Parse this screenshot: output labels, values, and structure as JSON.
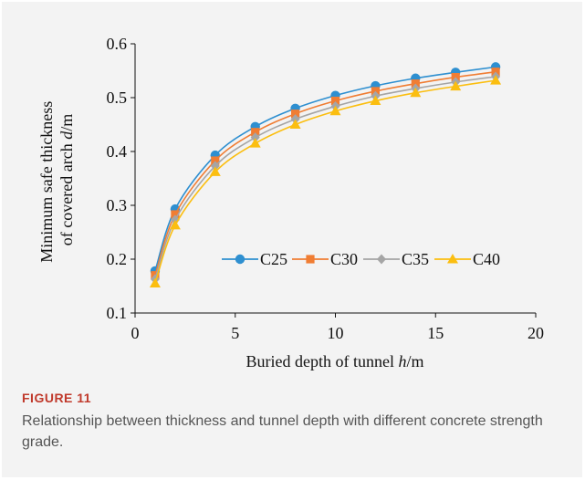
{
  "chart_data": {
    "type": "line",
    "xlabel": "Buried depth of tunnel h/m",
    "ylabel_line1": "Minimum safe thickness",
    "ylabel_line2": "of covered arch d/m",
    "xlim": [
      0,
      20
    ],
    "ylim": [
      0.1,
      0.6
    ],
    "xticks": [
      0,
      5,
      10,
      15,
      20
    ],
    "yticks": [
      0.1,
      0.2,
      0.3,
      0.4,
      0.5,
      0.6
    ],
    "grid": false,
    "legend_position": "lower-right inside",
    "x": [
      1,
      2,
      4,
      6,
      8,
      10,
      12,
      14,
      16,
      18
    ],
    "series": [
      {
        "name": "C25",
        "color": "#2e8fd0",
        "marker": "circle",
        "values": [
          0.178,
          0.293,
          0.393,
          0.446,
          0.48,
          0.504,
          0.522,
          0.536,
          0.547,
          0.557
        ]
      },
      {
        "name": "C30",
        "color": "#f07d33",
        "marker": "square",
        "values": [
          0.17,
          0.283,
          0.383,
          0.436,
          0.47,
          0.494,
          0.512,
          0.526,
          0.538,
          0.548
        ]
      },
      {
        "name": "C35",
        "color": "#a5a5a5",
        "marker": "diamond",
        "values": [
          0.163,
          0.273,
          0.373,
          0.426,
          0.46,
          0.484,
          0.503,
          0.517,
          0.529,
          0.539
        ]
      },
      {
        "name": "C40",
        "color": "#fbbe10",
        "marker": "triangle",
        "values": [
          0.155,
          0.263,
          0.362,
          0.415,
          0.45,
          0.475,
          0.494,
          0.509,
          0.521,
          0.532
        ]
      }
    ]
  },
  "figure": {
    "label": "FIGURE 11",
    "caption": "Relationship between thickness and tunnel depth with different concrete strength grade."
  }
}
